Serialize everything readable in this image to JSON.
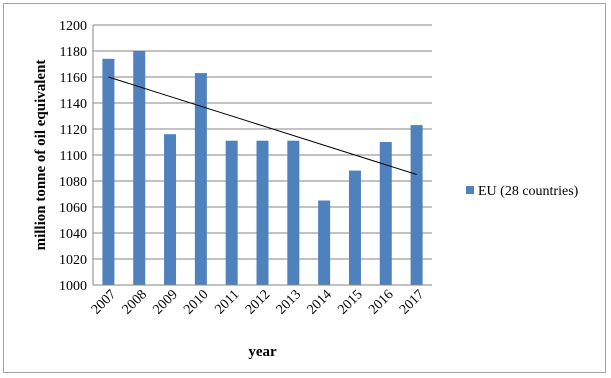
{
  "chart_data": {
    "type": "bar",
    "categories": [
      "2007",
      "2008",
      "2009",
      "2010",
      "2011",
      "2012",
      "2013",
      "2014",
      "2015",
      "2016",
      "2017"
    ],
    "series": [
      {
        "name": "EU (28 countries)",
        "values": [
          1174,
          1180,
          1116,
          1163,
          1111,
          1111,
          1111,
          1065,
          1088,
          1110,
          1123
        ],
        "color": "#4f81bd"
      }
    ],
    "trendline": {
      "type": "linear",
      "start": 1160,
      "end": 1085,
      "color": "#000000"
    },
    "xlabel": "year",
    "ylabel": "million tonne of oil equivalent",
    "ylim": [
      1000,
      1200
    ],
    "yticks": [
      1000,
      1020,
      1040,
      1060,
      1080,
      1100,
      1120,
      1140,
      1160,
      1180,
      1200
    ],
    "grid": true,
    "legend_position": "right"
  }
}
